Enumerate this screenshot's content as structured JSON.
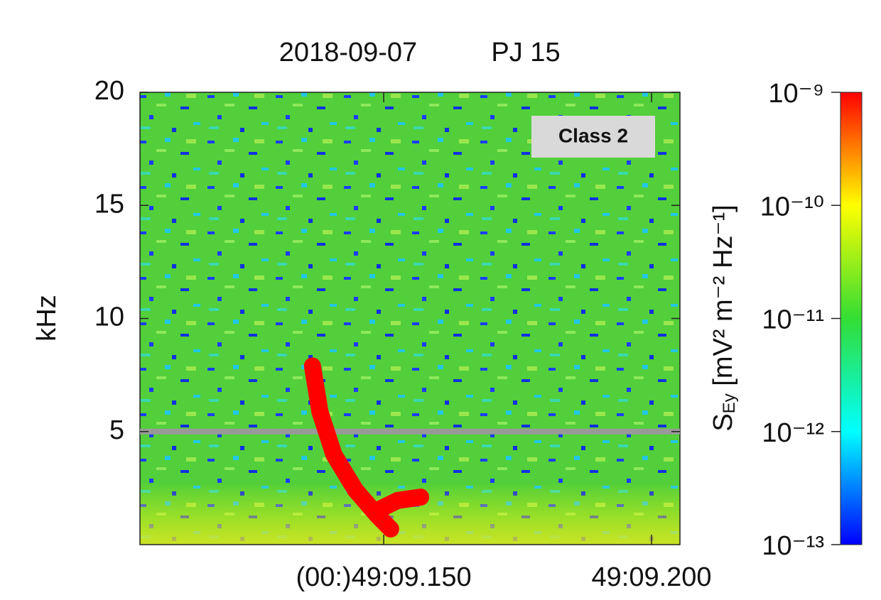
{
  "chart_data": {
    "type": "spectrogram",
    "title": [
      "2018-09-07",
      "PJ 15"
    ],
    "ylabel": "kHz",
    "xlim": [
      9.1045,
      9.2053
    ],
    "xticks": [
      {
        "value": 9.15,
        "label": "(00:)49:09.150"
      },
      {
        "value": 9.2,
        "label": "49:09.200"
      }
    ],
    "ylim": [
      0,
      20
    ],
    "yticks": [
      5,
      10,
      15,
      20
    ],
    "emission": {
      "color": "#ff0000",
      "x": [
        9.1367,
        9.1381,
        9.1407,
        9.1447,
        9.1487,
        9.1513,
        null,
        9.1487,
        9.1526,
        9.1569
      ],
      "y": [
        7.9,
        5.87,
        3.98,
        2.42,
        1.32,
        0.69,
        null,
        1.5,
        1.95,
        2.1
      ]
    },
    "reference_line": {
      "value": 5,
      "color": "#999999"
    },
    "annotation": "Class 2",
    "colorbar": {
      "log": true,
      "lim": [
        1e-13,
        1e-09
      ],
      "colormap": [
        "#0000ff",
        "#00ffff",
        "#33dd33",
        "#ffff00",
        "#ff0000"
      ],
      "ticks": [
        {
          "value": 1e-09,
          "label": "10⁻⁹"
        },
        {
          "value": 1e-10,
          "label": "10⁻¹⁰"
        },
        {
          "value": 1e-11,
          "label": "10⁻¹¹"
        },
        {
          "value": 1e-12,
          "label": "10⁻¹²"
        },
        {
          "value": 1e-13,
          "label": "10⁻¹³"
        }
      ],
      "label": [
        "S",
        "Ey",
        " [mV² m⁻² Hz⁻¹]"
      ]
    }
  }
}
